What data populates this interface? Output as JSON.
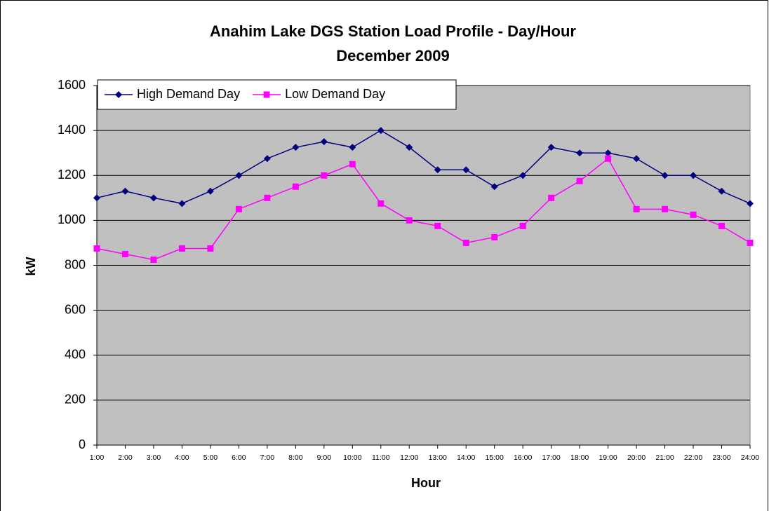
{
  "chart_data": {
    "type": "line",
    "title": "Anahim Lake DGS Station Load Profile - Day/Hour",
    "subtitle": "December 2009",
    "x_label": "Hour",
    "y_label": "kW",
    "categories": [
      "1:00",
      "2:00",
      "3:00",
      "4:00",
      "5:00",
      "6:00",
      "7:00",
      "8:00",
      "9:00",
      "10:00",
      "11:00",
      "12:00",
      "13:00",
      "14:00",
      "15:00",
      "16:00",
      "17:00",
      "18:00",
      "19:00",
      "20:00",
      "21:00",
      "22:00",
      "23:00",
      "24:00"
    ],
    "series": [
      {
        "name": "High Demand Day",
        "color": "#000080",
        "marker": "diamond",
        "values": [
          1100,
          1130,
          1100,
          1075,
          1130,
          1200,
          1275,
          1325,
          1350,
          1325,
          1400,
          1325,
          1225,
          1225,
          1150,
          1200,
          1325,
          1300,
          1300,
          1275,
          1200,
          1200,
          1130,
          1075
        ]
      },
      {
        "name": "Low Demand Day",
        "color": "#ff00ff",
        "marker": "square",
        "values": [
          875,
          850,
          825,
          875,
          875,
          1050,
          1100,
          1150,
          1200,
          1250,
          1075,
          1000,
          975,
          900,
          925,
          975,
          1100,
          1175,
          1275,
          1050,
          1050,
          1025,
          975,
          900
        ]
      }
    ],
    "ylim": [
      0,
      1600
    ],
    "yticks": [
      0,
      200,
      400,
      600,
      800,
      1000,
      1200,
      1400,
      1600
    ],
    "grid": true,
    "legend": "top-left",
    "plot_background": "#c0c0c0"
  }
}
